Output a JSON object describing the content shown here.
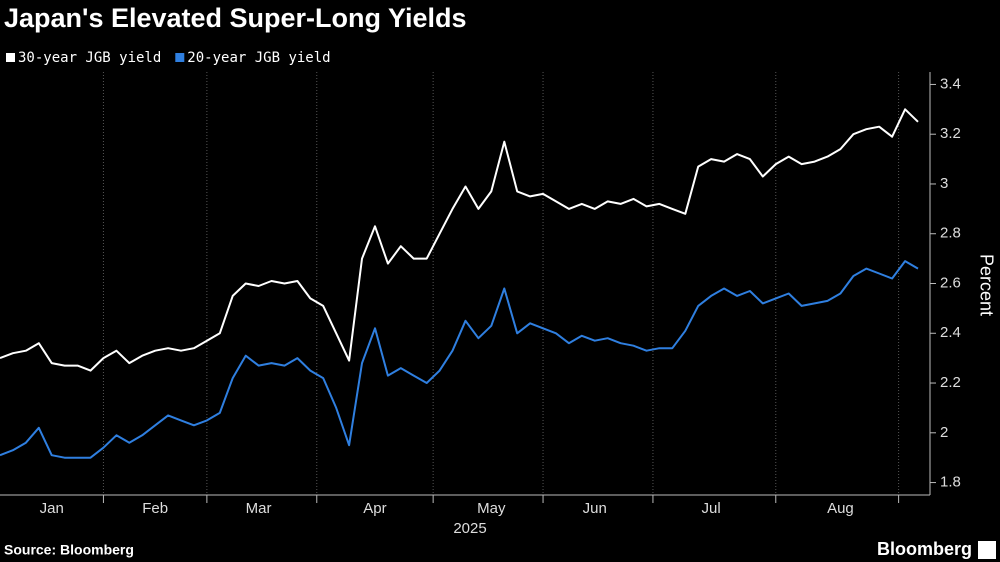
{
  "chart_data": {
    "type": "line",
    "title": "Japan's Elevated Super-Long Yields",
    "ylabel": "Percent",
    "xlabel": "2025",
    "source": "Source: Bloomberg",
    "brand": "Bloomberg",
    "categories": [
      null,
      null,
      null,
      null,
      "Jan",
      null,
      null,
      null,
      null,
      null,
      null,
      null,
      "Feb",
      null,
      null,
      null,
      null,
      null,
      null,
      null,
      "Mar",
      null,
      null,
      null,
      null,
      null,
      null,
      null,
      null,
      "Apr",
      null,
      null,
      null,
      null,
      null,
      null,
      null,
      null,
      "May",
      null,
      null,
      null,
      null,
      null,
      null,
      null,
      "Jun",
      null,
      null,
      null,
      null,
      null,
      null,
      null,
      null,
      "Jul",
      null,
      null,
      null,
      null,
      null,
      null,
      null,
      null,
      null,
      "Aug",
      null,
      null,
      null,
      null,
      null,
      null
    ],
    "series": [
      {
        "name": "30-year JGB yield",
        "color": "#ffffff",
        "values": [
          2.3,
          2.32,
          2.33,
          2.36,
          2.28,
          2.27,
          2.27,
          2.25,
          2.3,
          2.33,
          2.28,
          2.31,
          2.33,
          2.34,
          2.33,
          2.34,
          2.37,
          2.4,
          2.55,
          2.6,
          2.59,
          2.61,
          2.6,
          2.61,
          2.54,
          2.51,
          2.4,
          2.29,
          2.7,
          2.83,
          2.68,
          2.75,
          2.7,
          2.7,
          2.8,
          2.9,
          2.99,
          2.9,
          2.97,
          3.17,
          2.97,
          2.95,
          2.96,
          2.93,
          2.9,
          2.92,
          2.9,
          2.93,
          2.92,
          2.94,
          2.91,
          2.92,
          2.9,
          2.88,
          3.07,
          3.1,
          3.09,
          3.12,
          3.1,
          3.03,
          3.08,
          3.11,
          3.08,
          3.09,
          3.11,
          3.14,
          3.2,
          3.22,
          3.23,
          3.19,
          3.3,
          3.25
        ]
      },
      {
        "name": "20-year JGB yield",
        "color": "#2f7fe0",
        "values": [
          1.91,
          1.93,
          1.96,
          2.02,
          1.91,
          1.9,
          1.9,
          1.9,
          1.94,
          1.99,
          1.96,
          1.99,
          2.03,
          2.07,
          2.05,
          2.03,
          2.05,
          2.08,
          2.22,
          2.31,
          2.27,
          2.28,
          2.27,
          2.3,
          2.25,
          2.22,
          2.1,
          1.95,
          2.28,
          2.42,
          2.23,
          2.26,
          2.23,
          2.2,
          2.25,
          2.33,
          2.45,
          2.38,
          2.43,
          2.58,
          2.4,
          2.44,
          2.42,
          2.4,
          2.36,
          2.39,
          2.37,
          2.38,
          2.36,
          2.35,
          2.33,
          2.34,
          2.34,
          2.41,
          2.51,
          2.55,
          2.58,
          2.55,
          2.57,
          2.52,
          2.54,
          2.56,
          2.51,
          2.52,
          2.53,
          2.56,
          2.63,
          2.66,
          2.64,
          2.62,
          2.69,
          2.66
        ]
      }
    ],
    "ylim": [
      1.75,
      3.45
    ],
    "yticks": [
      1.8,
      2.0,
      2.2,
      2.4,
      2.6,
      2.8,
      3.0,
      3.2,
      3.4
    ],
    "legend": "top-left"
  }
}
